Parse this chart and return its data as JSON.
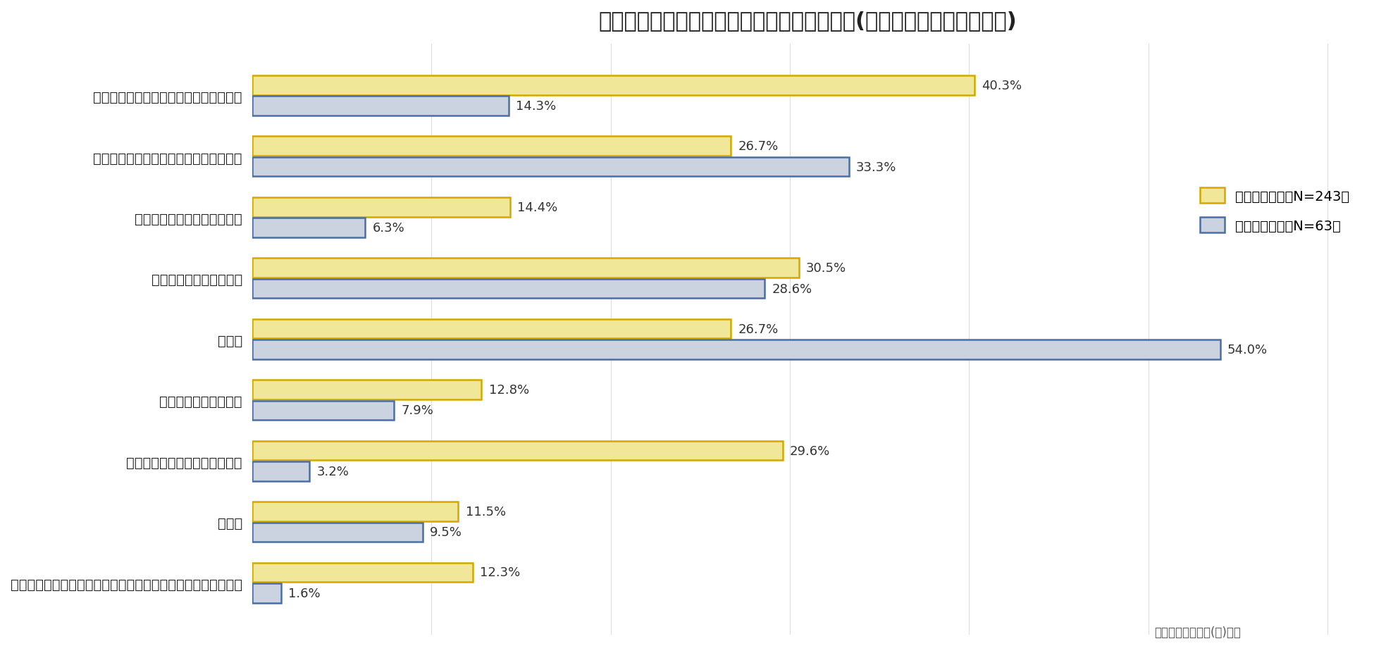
{
  "title": "腰の痛みや悩みを感じるタイミング・シーン(デスクワーク・現場仕事)",
  "categories": [
    "長時間の座りっぱなしの間、もしくは後",
    "長時間の立ちっぱなしの間、もしくは後",
    "ストレスがたまっているとき",
    "疲れがたまっているとき",
    "仕事中",
    "運動中、または運動後",
    "デスクワークの間、もしくは後",
    "運転中",
    "スマートフォン・タブレット・パソコンの使用時、もしくは後"
  ],
  "desk_values": [
    40.3,
    26.7,
    14.4,
    30.5,
    26.7,
    12.8,
    29.6,
    11.5,
    12.3
  ],
  "field_values": [
    14.3,
    33.3,
    6.3,
    28.6,
    54.0,
    7.9,
    3.2,
    9.5,
    1.6
  ],
  "desk_color": "#f0e898",
  "desk_border": "#d4a800",
  "field_color": "#ccd3e0",
  "field_border": "#4a6fa5",
  "legend_desk_line1": "デスクワーク（N=243）",
  "legend_field_line1": "現場仕事",
  "legend_field_line2": "（N=63）",
  "source_text": "日本シグマックス(株)調べ",
  "title_fontsize": 22,
  "label_fontsize": 14,
  "value_fontsize": 13,
  "legend_fontsize": 14,
  "xlim": [
    0,
    62
  ],
  "background_color": "#ffffff",
  "bar_height": 0.32,
  "bar_gap": 0.02
}
